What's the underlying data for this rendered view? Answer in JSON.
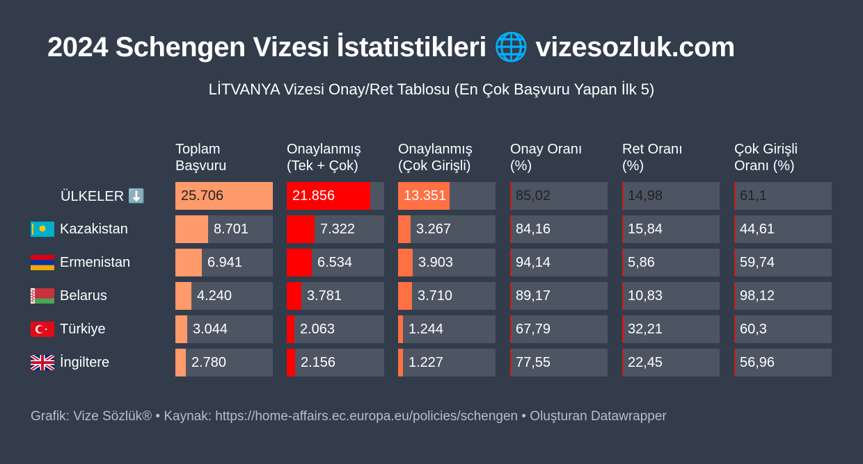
{
  "title": "2024 Schengen Vizesi İstatistikleri 🌐 vizesozluk.com",
  "subtitle": "LİTVANYA Vizesi Onay/Ret Tablosu (En Çok Başvuru Yapan İlk 5)",
  "footer": "Grafik: Vize Sözlük® • Kaynak: https://home-affairs.ec.europa.eu/policies/schengen • Oluşturan Datawrapper",
  "colors": {
    "background": "#323c4b",
    "cell": "#4d5563",
    "total_bar": "#ff9a6b",
    "approved_bar": "#ff0000",
    "multi_bar": "#ff7043",
    "rate_tick": "#cc1f1f"
  },
  "chart_data": {
    "type": "table",
    "columns": [
      "Toplam\nBaşvuru",
      "Onaylanmış\n(Tek + Çok)",
      "Onaylanmış\n(Çok Girişli)",
      "Onay Oranı\n(%)",
      "Ret Oranı\n(%)",
      "Çok Girişli\nOranı (%)"
    ],
    "header_row": {
      "label": "ÜLKELER ⬇️",
      "values": [
        "25.706",
        "21.856",
        "13.351",
        "85,02",
        "14,98",
        "61,1"
      ],
      "numbers": [
        25706,
        21856,
        13351,
        85.02,
        14.98,
        61.1
      ]
    },
    "rows": [
      {
        "country": "Kazakistan",
        "flag": "kz-flag-icon",
        "values": [
          "8.701",
          "7.322",
          "3.267",
          "84,16",
          "15,84",
          "44,61"
        ],
        "numbers": [
          8701,
          7322,
          3267,
          84.16,
          15.84,
          44.61
        ]
      },
      {
        "country": "Ermenistan",
        "flag": "am-flag-icon",
        "values": [
          "6.941",
          "6.534",
          "3.903",
          "94,14",
          "5,86",
          "59,74"
        ],
        "numbers": [
          6941,
          6534,
          3903,
          94.14,
          5.86,
          59.74
        ]
      },
      {
        "country": "Belarus",
        "flag": "by-flag-icon",
        "values": [
          "4.240",
          "3.781",
          "3.710",
          "89,17",
          "10,83",
          "98,12"
        ],
        "numbers": [
          4240,
          3781,
          3710,
          89.17,
          10.83,
          98.12
        ]
      },
      {
        "country": "Türkiye",
        "flag": "tr-flag-icon",
        "values": [
          "3.044",
          "2.063",
          "1.244",
          "67,79",
          "32,21",
          "60,3"
        ],
        "numbers": [
          3044,
          2063,
          1244,
          67.79,
          32.21,
          60.3
        ]
      },
      {
        "country": "İngiltere",
        "flag": "gb-flag-icon",
        "values": [
          "2.780",
          "2.156",
          "1.227",
          "77,55",
          "22,45",
          "56,96"
        ],
        "numbers": [
          2780,
          2156,
          1227,
          77.55,
          22.45,
          56.96
        ]
      }
    ]
  }
}
